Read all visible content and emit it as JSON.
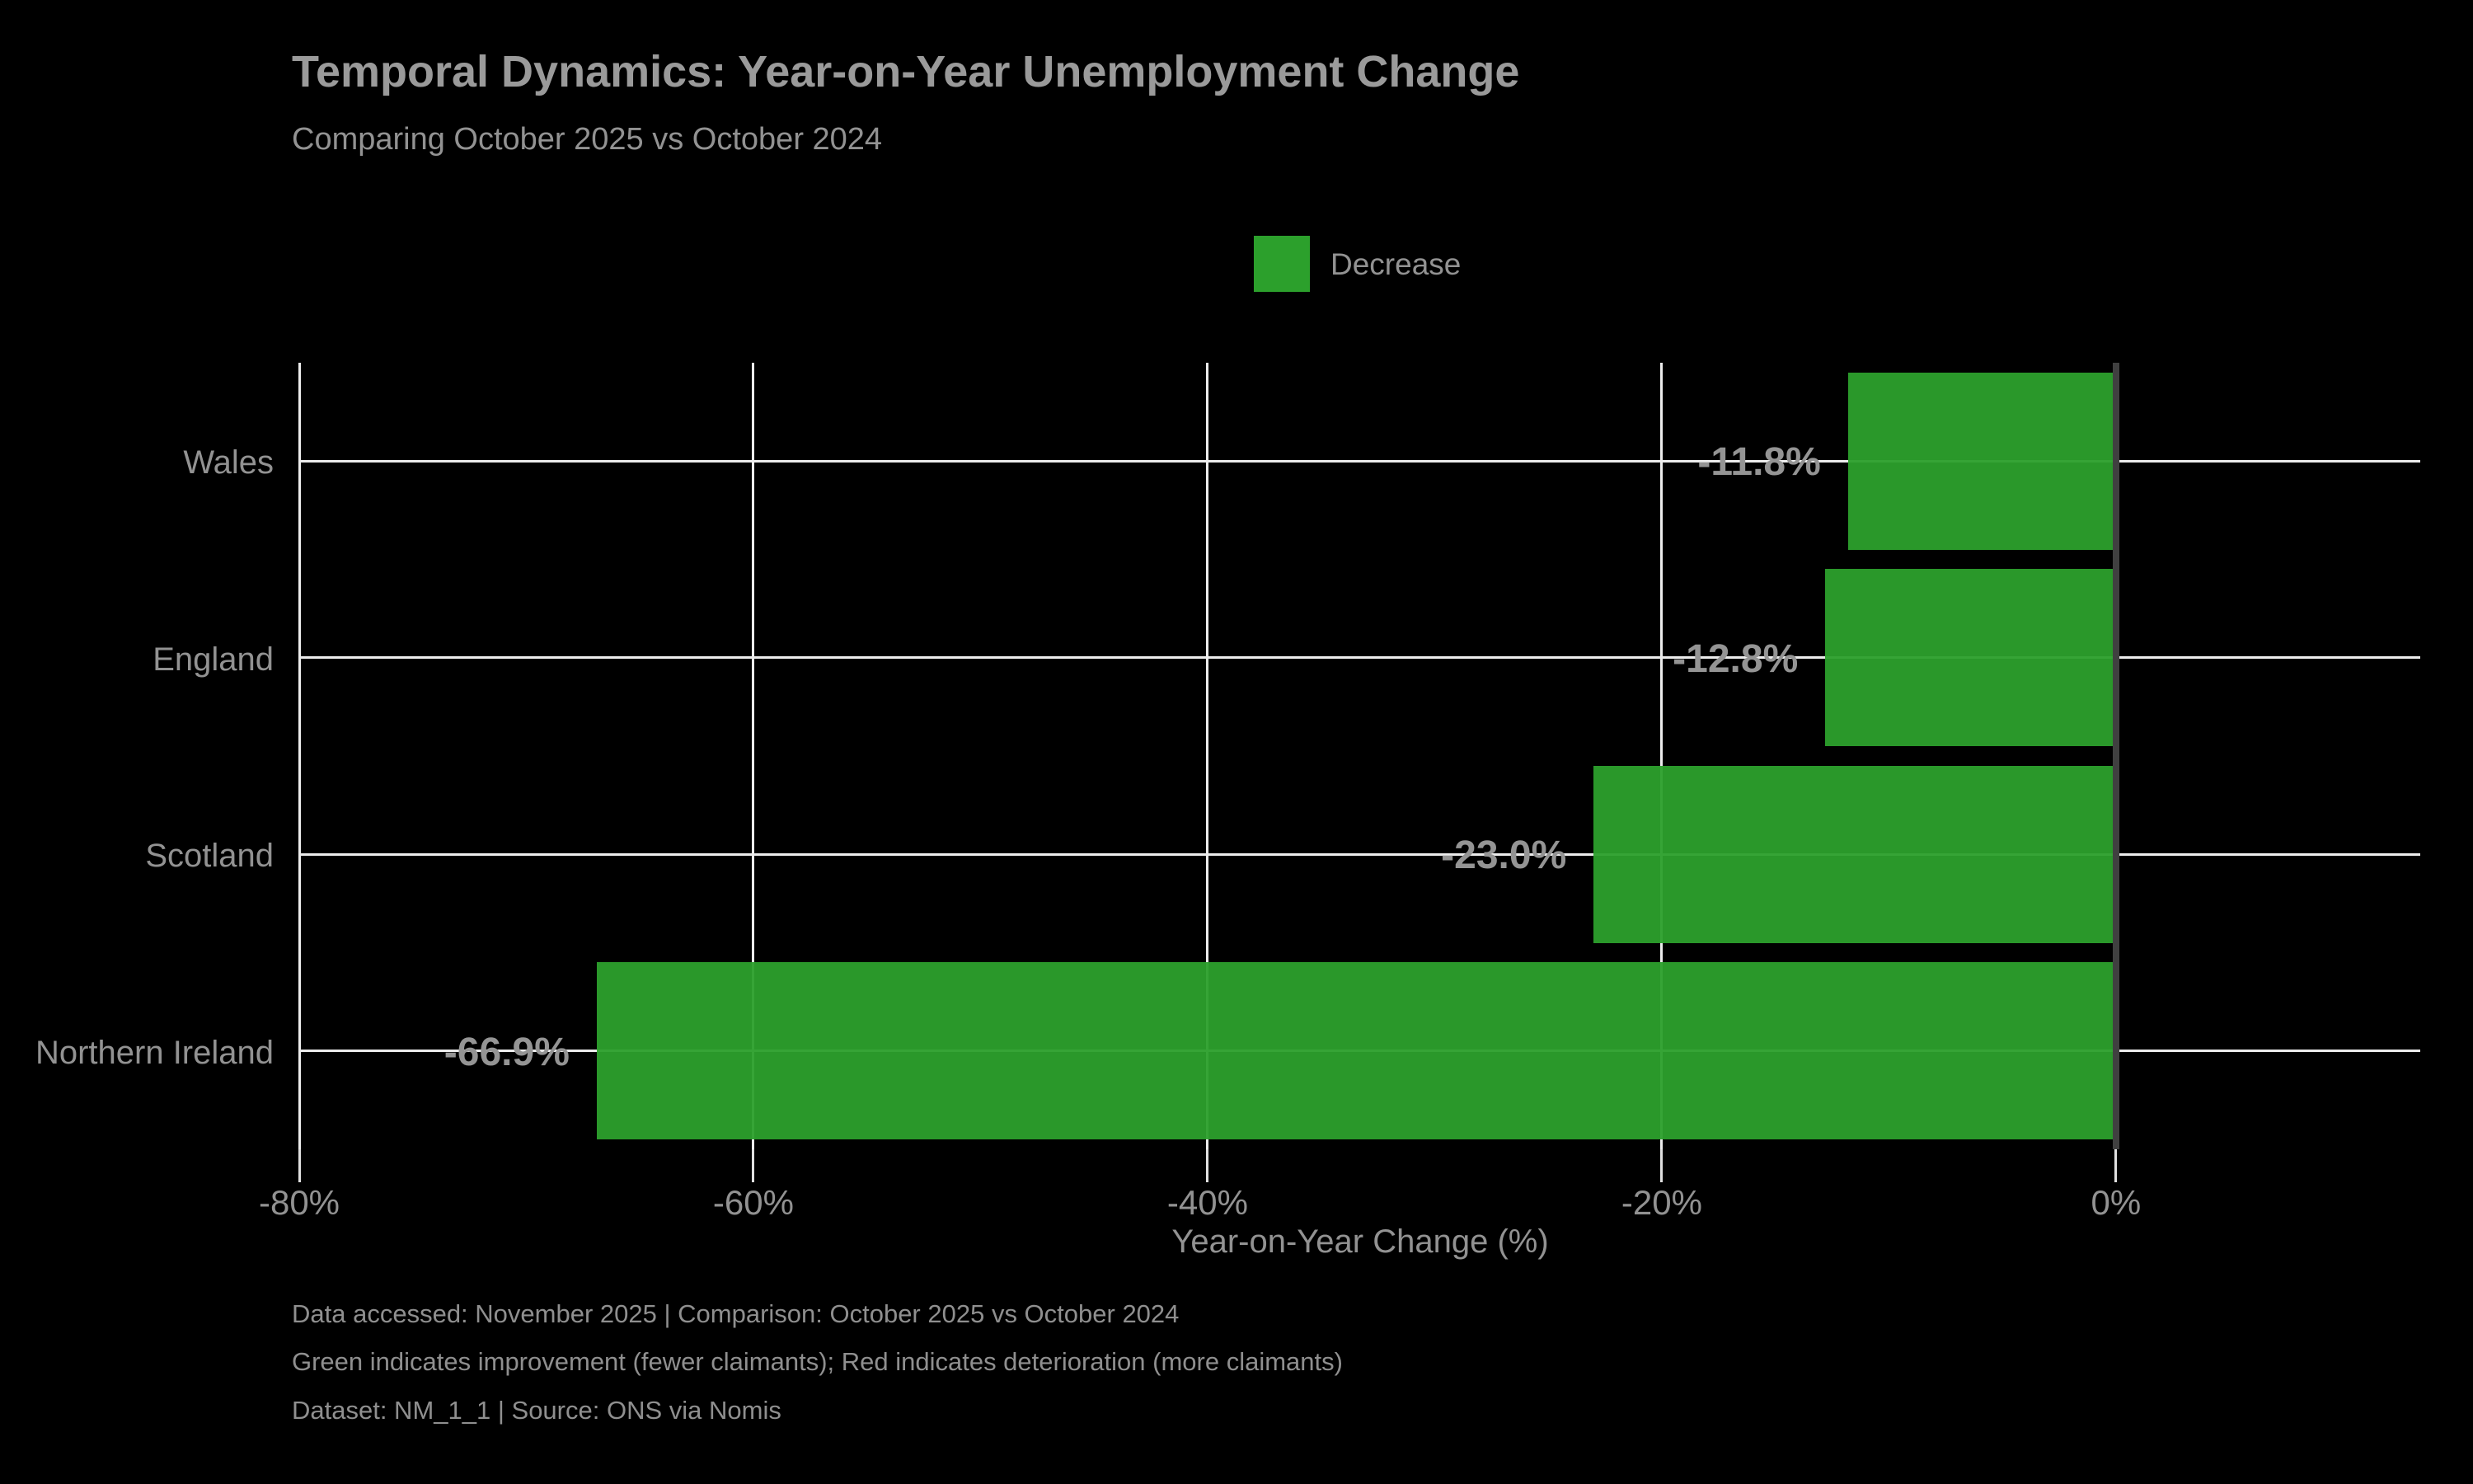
{
  "header": {
    "title": "Temporal Dynamics: Year-on-Year Unemployment Change",
    "subtitle": "Comparing October 2025 vs October 2024"
  },
  "legend": {
    "label": "Decrease",
    "swatch_color": "#2ca02c"
  },
  "chart_data": {
    "type": "bar",
    "orientation": "horizontal",
    "title": "Temporal Dynamics: Year-on-Year Unemployment Change",
    "subtitle": "Comparing October 2025 vs October 2024",
    "categories": [
      "Wales",
      "England",
      "Scotland",
      "Northern Ireland"
    ],
    "values": [
      -11.8,
      -12.8,
      -23.0,
      -66.9
    ],
    "value_labels": [
      "-11.8%",
      "-12.8%",
      "-23.0%",
      "-66.9%"
    ],
    "series_name": "Decrease",
    "bar_color": "#2ca02c",
    "xlabel": "Year-on-Year Change (%)",
    "xlim": [
      -80,
      13.4
    ],
    "xticks": [
      -80,
      -60,
      -40,
      -20,
      0
    ],
    "xtick_labels": [
      "-80%",
      "-60%",
      "-40%",
      "-20%",
      "0%"
    ],
    "grid": true,
    "legend_position": "top-center",
    "colors": {
      "background": "#000000",
      "grid": "#ececec",
      "zero_line": "#404040",
      "text": "#929292"
    }
  },
  "footer": {
    "lines": [
      "Data accessed: November 2025 | Comparison: October 2025 vs October 2024",
      "Green indicates improvement (fewer claimants); Red indicates deterioration (more claimants)",
      "Dataset: NM_1_1 | Source: ONS via Nomis"
    ]
  }
}
